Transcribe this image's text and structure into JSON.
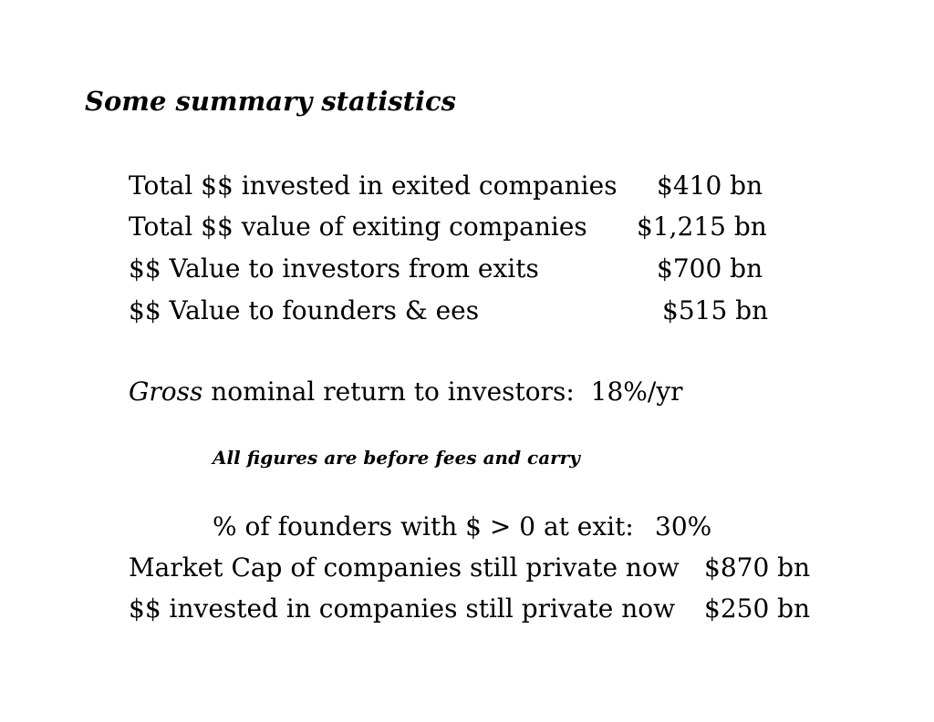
{
  "slide": {
    "title": "Some summary statistics",
    "exits": [
      {
        "label": "Total $$ invested in exited companies",
        "value": "$410 bn"
      },
      {
        "label": "Total $$ value of exiting companies",
        "value": "$1,215 bn"
      },
      {
        "label": "$$ Value to investors from exits",
        "value": "$700 bn"
      },
      {
        "label": "$$ Value to founders & ees",
        "value": "$515 bn"
      }
    ],
    "return": {
      "emphasis": "Gross",
      "rest": " nominal return to investors:  18%/yr"
    },
    "note": "All figures are before fees and carry",
    "founders": {
      "label": "% of founders with $ > 0 at exit:",
      "value": "30%"
    },
    "private": [
      {
        "label": "Market Cap of companies still private now",
        "value": "$870 bn"
      },
      {
        "label": "$$ invested in companies still private now",
        "value": "$250 bn"
      }
    ]
  }
}
